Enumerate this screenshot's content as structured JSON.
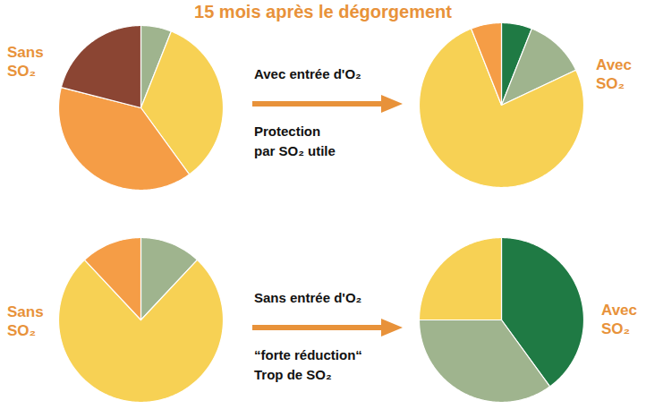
{
  "title": "15 mois après le dégorgement",
  "chart_data": [
    {
      "type": "pie",
      "title": "Sans SO₂",
      "values": [
        6,
        34,
        39,
        21
      ],
      "colors": [
        "#9fb48e",
        "#f7d154",
        "#f59d46",
        "#8b4533"
      ]
    },
    {
      "type": "pie",
      "title": "Avec SO₂",
      "values": [
        6,
        12,
        76,
        6
      ],
      "colors": [
        "#1f7a44",
        "#9fb48e",
        "#f7d154",
        "#f59d46"
      ]
    },
    {
      "type": "pie",
      "title": "Sans SO₂",
      "values": [
        12,
        76,
        12
      ],
      "colors": [
        "#9fb48e",
        "#f7d154",
        "#f59d46"
      ]
    },
    {
      "type": "pie",
      "title": "Avec SO₂",
      "values": [
        40,
        35,
        25
      ],
      "colors": [
        "#1f7a44",
        "#9fb48e",
        "#f7d154"
      ]
    }
  ],
  "annotations": [
    {
      "above": "Avec entrée d'O₂",
      "below": [
        "Protection",
        "par SO₂ utile"
      ]
    },
    {
      "above": "Sans entrée d'O₂",
      "below": [
        "“forte réduction“",
        "Trop de SO₂"
      ]
    }
  ]
}
